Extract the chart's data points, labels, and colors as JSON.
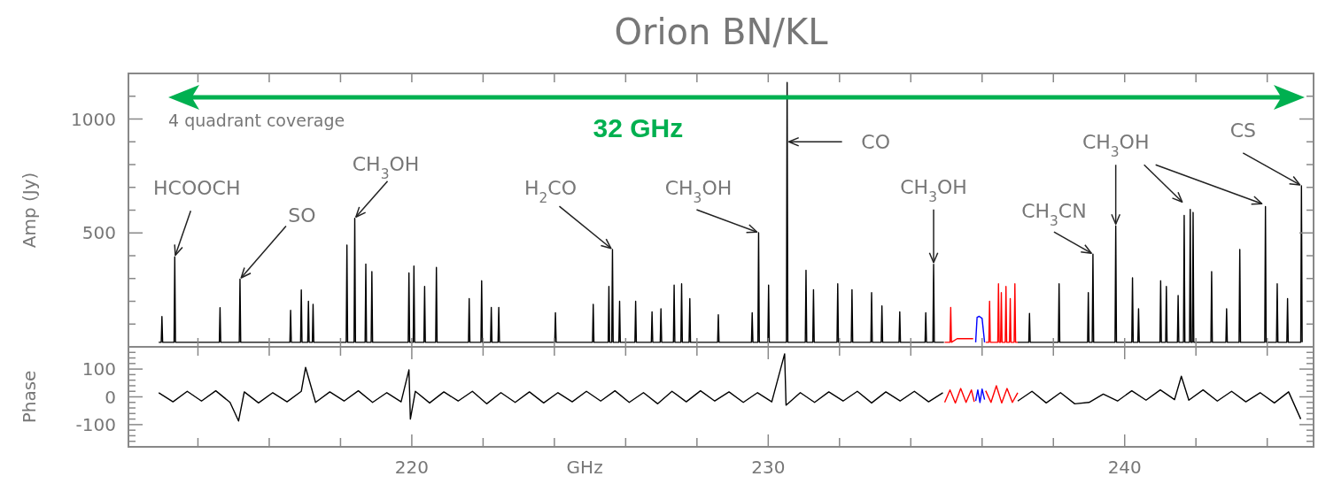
{
  "chart_data": [
    {
      "type": "line",
      "title": "Orion BN/KL",
      "ylabel": "Amp (Jy)",
      "xlim": [
        212.05,
        245.3
      ],
      "ylim": [
        0,
        1200
      ],
      "tick_labels": "y",
      "xticks": [
        {
          "value": 214,
          "label": null
        },
        {
          "value": 216,
          "label": null
        },
        {
          "value": 218,
          "label": null
        },
        {
          "value": 220,
          "label": null
        },
        {
          "value": 222,
          "label": null
        },
        {
          "value": 224,
          "label": null
        },
        {
          "value": 226,
          "label": null
        },
        {
          "value": 228,
          "label": null
        },
        {
          "value": 230,
          "label": null
        },
        {
          "value": 232,
          "label": null
        },
        {
          "value": 234,
          "label": null
        },
        {
          "value": 236,
          "label": null
        },
        {
          "value": 238,
          "label": null
        },
        {
          "value": 240,
          "label": null
        },
        {
          "value": 242,
          "label": null
        },
        {
          "value": 244,
          "label": null
        }
      ],
      "yticks": [
        {
          "value": 100,
          "label": null
        },
        {
          "value": 200,
          "label": null
        },
        {
          "value": 300,
          "label": null
        },
        {
          "value": 400,
          "label": null
        },
        500,
        {
          "value": 600,
          "label": null
        },
        {
          "value": 700,
          "label": null
        },
        {
          "value": 800,
          "label": null
        },
        {
          "value": 900,
          "label": null
        },
        1000,
        {
          "value": 1100,
          "label": null
        }
      ],
      "annotations": [
        "4 quadrant coverage",
        "32 GHz",
        {
          "text": "HCOOCH",
          "x": 213.35,
          "y": 395
        },
        {
          "text": "SO",
          "x": 215.18,
          "y": 297
        },
        {
          "text": "CH$_{3}$OH",
          "x": 218.4,
          "y": 564
        },
        {
          "text": "H$_{2}$CO",
          "x": 225.63,
          "y": 427
        },
        {
          "text": "CH$_{3}$OH",
          "x": 229.73,
          "y": 501
        },
        {
          "text": "CO",
          "x": 230.53,
          "y": 900
        },
        {
          "text": "CH$_{3}$OH",
          "x": 234.64,
          "y": 362
        },
        {
          "text": "CH$_{3}$CN",
          "x": 239.11,
          "y": 407
        },
        {
          "text": "CH$_{3}$OH",
          "x": 239.75,
          "y": 531
        },
        {
          "text": "CS",
          "x": 244.96,
          "y": 707
        }
      ],
      "series": [
        {
          "color": "#000000",
          "x": [
            212.9,
            212.97,
            212.99,
            213.01,
            213.33,
            213.35,
            213.37,
            214.6,
            214.62,
            214.64,
            215.16,
            215.18,
            215.2,
            216.58,
            216.6,
            216.62,
            216.88,
            216.9,
            216.92,
            217.08,
            217.1,
            217.12,
            217.21,
            217.23,
            217.25,
            218.16,
            218.18,
            218.2,
            218.38,
            218.4,
            218.42,
            218.69,
            218.71,
            218.73,
            218.86,
            218.88,
            218.9,
            219.9,
            219.92,
            219.94,
            220.04,
            220.06,
            220.08,
            220.34,
            220.36,
            220.38,
            220.67,
            220.69,
            220.71,
            221.59,
            221.61,
            221.63,
            221.94,
            221.96,
            221.98,
            222.21,
            222.23,
            222.25,
            222.42,
            222.44,
            222.46,
            224.01,
            224.03,
            224.05,
            225.07,
            225.09,
            225.11,
            225.51,
            225.53,
            225.55,
            225.61,
            225.63,
            225.65,
            225.81,
            225.83,
            225.85,
            226.26,
            226.28,
            226.3,
            226.72,
            226.74,
            226.76,
            226.97,
            226.99,
            227.01,
            227.34,
            227.36,
            227.38,
            227.55,
            227.57,
            227.59,
            227.78,
            227.8,
            227.82,
            228.58,
            228.6,
            228.62,
            229.53,
            229.55,
            229.57,
            229.71,
            229.73,
            229.75,
            229.99,
            230.01,
            230.03,
            230.51,
            230.53,
            230.55,
            231.04,
            231.06,
            231.08,
            231.25,
            231.27,
            231.29,
            231.93,
            231.95,
            231.97,
            232.33,
            232.35,
            232.37,
            232.88,
            232.9,
            232.92,
            233.17,
            233.19,
            233.21,
            233.67,
            233.69,
            233.71,
            234.4,
            234.42,
            234.44,
            234.62,
            234.64,
            234.66,
            234.93,
            234.95,
            237.0,
            237.31,
            237.33,
            237.35,
            238.14,
            238.16,
            238.18,
            238.96,
            238.98,
            239.0,
            239.09,
            239.11,
            239.13,
            239.73,
            239.75,
            239.77,
            240.2,
            240.22,
            240.24,
            240.37,
            240.39,
            240.41,
            240.99,
            241.01,
            241.03,
            241.15,
            241.17,
            241.19,
            241.48,
            241.5,
            241.52,
            241.65,
            241.67,
            241.69,
            241.82,
            241.84,
            241.86,
            241.9,
            241.92,
            241.94,
            242.42,
            242.44,
            242.46,
            242.84,
            242.86,
            242.88,
            243.21,
            243.23,
            243.25,
            243.93,
            243.95,
            243.97,
            244.26,
            244.28,
            244.3,
            244.55,
            244.57,
            244.59,
            244.94,
            244.96,
            244.98
          ],
          "values": [
            20,
            20,
            133,
            20,
            20,
            395,
            20,
            20,
            172,
            20,
            20,
            297,
            20,
            20,
            160,
            20,
            20,
            250,
            20,
            20,
            200,
            20,
            20,
            187,
            20,
            20,
            447,
            20,
            20,
            564,
            20,
            20,
            363,
            20,
            20,
            330,
            20,
            20,
            324,
            20,
            20,
            355,
            20,
            20,
            265,
            20,
            20,
            349,
            20,
            20,
            212,
            20,
            20,
            290,
            20,
            20,
            173,
            20,
            20,
            173,
            20,
            20,
            150,
            20,
            20,
            187,
            20,
            20,
            265,
            20,
            20,
            427,
            20,
            20,
            200,
            20,
            20,
            200,
            20,
            20,
            154,
            20,
            20,
            167,
            20,
            20,
            271,
            20,
            20,
            277,
            20,
            20,
            212,
            20,
            20,
            141,
            20,
            20,
            150,
            20,
            20,
            501,
            20,
            20,
            271,
            20,
            20,
            1160,
            20,
            20,
            336,
            20,
            20,
            251,
            20,
            20,
            277,
            20,
            20,
            251,
            20,
            20,
            238,
            20,
            20,
            180,
            20,
            20,
            154,
            20,
            20,
            150,
            20,
            20,
            362,
            20,
            20,
            null,
            20,
            20,
            147,
            20,
            20,
            277,
            20,
            20,
            238,
            20,
            20,
            407,
            20,
            20,
            531,
            20,
            20,
            303,
            20,
            20,
            167,
            20,
            20,
            290,
            20,
            20,
            265,
            20,
            20,
            225,
            20,
            20,
            577,
            20,
            20,
            603,
            20,
            20,
            590,
            20,
            20,
            330,
            20,
            20,
            167,
            20,
            20,
            427,
            20,
            20,
            616,
            20,
            20,
            277,
            20,
            20,
            212,
            20,
            20,
            707,
            20
          ]
        },
        {
          "color": "#ff0000",
          "x": [
            234.95,
            235.1,
            235.12,
            235.14,
            235.3,
            235.75,
            235.8,
            236.1,
            236.19,
            236.21,
            236.23,
            236.44,
            236.46,
            236.48,
            236.52,
            236.54,
            236.56,
            236.65,
            236.67,
            236.69,
            236.77,
            236.79,
            236.81,
            236.9,
            236.92,
            236.94,
            237.0
          ],
          "values": [
            20,
            20,
            173,
            20,
            36,
            36,
            null,
            20,
            20,
            200,
            20,
            20,
            277,
            20,
            20,
            238,
            20,
            20,
            265,
            20,
            20,
            212,
            20,
            20,
            277,
            20,
            20
          ]
        },
        {
          "color": "#0000ff",
          "x": [
            235.82,
            235.86,
            235.92,
            236.0,
            236.07
          ],
          "values": [
            20,
            130,
            134,
            125,
            20
          ]
        }
      ]
    },
    {
      "type": "line",
      "xlabel": "GHz",
      "ylabel": "Phase",
      "xlim": [
        212.05,
        245.3
      ],
      "ylim": [
        -180,
        180
      ],
      "xticks": [
        {
          "value": 214,
          "label": null
        },
        {
          "value": 216,
          "label": null
        },
        {
          "value": 218,
          "label": null
        },
        220,
        {
          "value": 222,
          "label": null
        },
        {
          "value": 224,
          "label": null
        },
        {
          "value": 226,
          "label": null
        },
        {
          "value": 228,
          "label": null
        },
        230,
        {
          "value": 232,
          "label": null
        },
        {
          "value": 234,
          "label": null
        },
        {
          "value": 236,
          "label": null
        },
        {
          "value": 238,
          "label": null
        },
        240,
        {
          "value": 242,
          "label": null
        },
        {
          "value": 244,
          "label": null
        }
      ],
      "yticks": [
        {
          "value": -160,
          "label": null
        },
        {
          "value": -140,
          "label": null
        },
        {
          "value": -120,
          "label": null
        },
        -100,
        {
          "value": -80,
          "label": null
        },
        {
          "value": -60,
          "label": null
        },
        {
          "value": -40,
          "label": null
        },
        {
          "value": -20,
          "label": null
        },
        0,
        {
          "value": 20,
          "label": null
        },
        {
          "value": 40,
          "label": null
        },
        {
          "value": 60,
          "label": null
        },
        {
          "value": 80,
          "label": null
        },
        100,
        {
          "value": 120,
          "label": null
        },
        {
          "value": 140,
          "label": null
        },
        {
          "value": 160,
          "label": null
        }
      ],
      "series": [
        {
          "color": "#000000",
          "x": [
            212.9,
            213.3,
            213.7,
            214.1,
            214.5,
            214.9,
            215.14,
            215.3,
            215.7,
            216.1,
            216.5,
            216.9,
            217.02,
            217.3,
            217.7,
            218.1,
            218.5,
            218.9,
            219.3,
            219.7,
            219.92,
            219.96,
            220.1,
            220.5,
            220.9,
            221.3,
            221.7,
            222.1,
            222.5,
            222.9,
            223.3,
            223.7,
            224.1,
            224.5,
            224.9,
            225.3,
            225.7,
            226.1,
            226.5,
            226.9,
            227.3,
            227.7,
            228.1,
            228.5,
            228.9,
            229.3,
            229.7,
            230.1,
            230.46,
            230.5,
            230.9,
            231.3,
            231.7,
            232.1,
            232.5,
            232.9,
            233.3,
            233.7,
            234.1,
            234.5,
            234.9,
            234.95,
            237.0,
            237.4,
            237.8,
            238.2,
            238.6,
            239.0,
            239.4,
            239.8,
            240.2,
            240.6,
            241.0,
            241.4,
            241.59,
            241.8,
            242.2,
            242.6,
            243.0,
            243.4,
            243.8,
            244.2,
            244.6,
            244.94
          ],
          "values": [
            15,
            -18,
            20,
            -15,
            22,
            -20,
            -87,
            18,
            -22,
            15,
            -18,
            20,
            106,
            -20,
            18,
            -15,
            22,
            -20,
            15,
            -18,
            97,
            -80,
            20,
            -22,
            18,
            -15,
            20,
            -25,
            15,
            -20,
            18,
            -22,
            15,
            -18,
            20,
            -15,
            22,
            -20,
            15,
            -25,
            20,
            -18,
            22,
            -15,
            18,
            -20,
            15,
            -18,
            155,
            -30,
            15,
            -20,
            18,
            -15,
            20,
            -22,
            18,
            -15,
            20,
            -18,
            15,
            null,
            -15,
            20,
            -22,
            15,
            -25,
            -20,
            10,
            -15,
            22,
            -12,
            25,
            -10,
            74,
            -12,
            25,
            -15,
            20,
            -18,
            15,
            -22,
            18,
            -80
          ]
        },
        {
          "color": "#ff0000",
          "x": [
            234.95,
            235.1,
            235.25,
            235.4,
            235.55,
            235.7,
            235.78,
            235.8,
            236.1,
            236.25,
            236.4,
            236.55,
            236.7,
            236.85,
            237.0
          ],
          "values": [
            -20,
            25,
            -22,
            30,
            -20,
            25,
            -18,
            null,
            22,
            -20,
            40,
            -22,
            30,
            -20,
            15
          ]
        },
        {
          "color": "#0000ff",
          "x": [
            235.82,
            235.88,
            235.94,
            236.0,
            236.07
          ],
          "values": [
            -15,
            25,
            -20,
            28,
            -10
          ]
        }
      ]
    }
  ]
}
